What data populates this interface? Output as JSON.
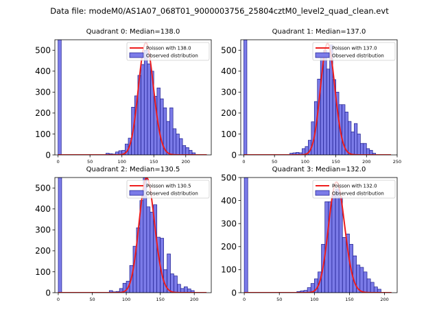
{
  "figure": {
    "suptitle": "Data file: modeM0/AS1A07_068T01_9000003756_25804cztM0_level2_quad_clean.evt"
  },
  "colors": {
    "bar_fill": "#7b7be8",
    "bar_edge": "#1a1a8c",
    "poisson_line": "#ee1c1c"
  },
  "chart_data": [
    {
      "type": "bar",
      "title": "Quadrant 0: Median=138.0",
      "xlim": [
        -5,
        240
      ],
      "ylim": [
        0,
        550
      ],
      "xticks": [
        0,
        50,
        100,
        150,
        200
      ],
      "yticks": [
        0,
        100,
        200,
        300,
        400,
        500
      ],
      "bin_width": 5,
      "bars": [
        {
          "x": 0,
          "y": 550
        },
        {
          "x": 75,
          "y": 8
        },
        {
          "x": 80,
          "y": 6
        },
        {
          "x": 85,
          "y": 4
        },
        {
          "x": 90,
          "y": 14
        },
        {
          "x": 95,
          "y": 20
        },
        {
          "x": 100,
          "y": 22
        },
        {
          "x": 105,
          "y": 52
        },
        {
          "x": 110,
          "y": 80
        },
        {
          "x": 115,
          "y": 228
        },
        {
          "x": 120,
          "y": 282
        },
        {
          "x": 125,
          "y": 380
        },
        {
          "x": 130,
          "y": 432
        },
        {
          "x": 135,
          "y": 500
        },
        {
          "x": 140,
          "y": 435
        },
        {
          "x": 145,
          "y": 400
        },
        {
          "x": 150,
          "y": 280
        },
        {
          "x": 155,
          "y": 320
        },
        {
          "x": 160,
          "y": 268
        },
        {
          "x": 165,
          "y": 225
        },
        {
          "x": 170,
          "y": 160
        },
        {
          "x": 175,
          "y": 225
        },
        {
          "x": 180,
          "y": 125
        },
        {
          "x": 185,
          "y": 100
        },
        {
          "x": 190,
          "y": 78
        },
        {
          "x": 195,
          "y": 45
        },
        {
          "x": 200,
          "y": 35
        },
        {
          "x": 205,
          "y": 22
        },
        {
          "x": 210,
          "y": 10
        }
      ],
      "poisson": {
        "mean": 138.0,
        "scale": 535,
        "range": [
          0,
          233
        ]
      },
      "legend": [
        "Poisson with 138.0",
        "Observed distribution"
      ]
    },
    {
      "type": "bar",
      "title": "Quadrant 1: Median=137.0",
      "xlim": [
        -5,
        250
      ],
      "ylim": [
        0,
        550
      ],
      "xticks": [
        0,
        50,
        100,
        150,
        200,
        250
      ],
      "yticks": [
        0,
        100,
        200,
        300,
        400,
        500
      ],
      "bin_width": 5,
      "bars": [
        {
          "x": 0,
          "y": 550
        },
        {
          "x": 75,
          "y": 8
        },
        {
          "x": 80,
          "y": 10
        },
        {
          "x": 85,
          "y": 12
        },
        {
          "x": 90,
          "y": 10
        },
        {
          "x": 95,
          "y": 30
        },
        {
          "x": 100,
          "y": 40
        },
        {
          "x": 105,
          "y": 70
        },
        {
          "x": 110,
          "y": 158
        },
        {
          "x": 115,
          "y": 255
        },
        {
          "x": 120,
          "y": 362
        },
        {
          "x": 125,
          "y": 482
        },
        {
          "x": 130,
          "y": 500
        },
        {
          "x": 135,
          "y": 410
        },
        {
          "x": 140,
          "y": 525
        },
        {
          "x": 145,
          "y": 360
        },
        {
          "x": 150,
          "y": 300
        },
        {
          "x": 155,
          "y": 240
        },
        {
          "x": 160,
          "y": 240
        },
        {
          "x": 165,
          "y": 205
        },
        {
          "x": 170,
          "y": 160
        },
        {
          "x": 175,
          "y": 110
        },
        {
          "x": 180,
          "y": 150
        },
        {
          "x": 185,
          "y": 100
        },
        {
          "x": 190,
          "y": 55
        },
        {
          "x": 195,
          "y": 55
        },
        {
          "x": 200,
          "y": 30
        },
        {
          "x": 205,
          "y": 22
        },
        {
          "x": 210,
          "y": 8
        }
      ],
      "poisson": {
        "mean": 137.0,
        "scale": 532,
        "range": [
          0,
          240
        ]
      },
      "legend": [
        "Poisson with 137.0",
        "Observed distribution"
      ]
    },
    {
      "type": "bar",
      "title": "Quadrant 2: Median=130.5",
      "xlim": [
        -5,
        225
      ],
      "ylim": [
        0,
        550
      ],
      "xticks": [
        0,
        50,
        100,
        150,
        200
      ],
      "yticks": [
        0,
        100,
        200,
        300,
        400,
        500
      ],
      "bin_width": 5,
      "bars": [
        {
          "x": 0,
          "y": 550
        },
        {
          "x": 75,
          "y": 10
        },
        {
          "x": 80,
          "y": 4
        },
        {
          "x": 85,
          "y": 6
        },
        {
          "x": 90,
          "y": 20
        },
        {
          "x": 95,
          "y": 45
        },
        {
          "x": 100,
          "y": 55
        },
        {
          "x": 105,
          "y": 130
        },
        {
          "x": 110,
          "y": 222
        },
        {
          "x": 115,
          "y": 310
        },
        {
          "x": 120,
          "y": 440
        },
        {
          "x": 125,
          "y": 550
        },
        {
          "x": 130,
          "y": 410
        },
        {
          "x": 135,
          "y": 385
        },
        {
          "x": 140,
          "y": 420
        },
        {
          "x": 145,
          "y": 265
        },
        {
          "x": 150,
          "y": 260
        },
        {
          "x": 155,
          "y": 110
        },
        {
          "x": 160,
          "y": 185
        },
        {
          "x": 165,
          "y": 90
        },
        {
          "x": 170,
          "y": 80
        },
        {
          "x": 175,
          "y": 40
        },
        {
          "x": 180,
          "y": 20
        },
        {
          "x": 185,
          "y": 28
        },
        {
          "x": 190,
          "y": 18
        },
        {
          "x": 195,
          "y": 10
        }
      ],
      "poisson": {
        "mean": 130.5,
        "scale": 548,
        "range": [
          0,
          218
        ]
      },
      "legend": [
        "Poisson with 130.5",
        "Observed distribution"
      ]
    },
    {
      "type": "bar",
      "title": "Quadrant 3: Median=132.0",
      "xlim": [
        -5,
        218
      ],
      "ylim": [
        0,
        500
      ],
      "xticks": [
        0,
        50,
        100,
        150,
        200
      ],
      "yticks": [
        0,
        100,
        200,
        300,
        400,
        500
      ],
      "bin_width": 5,
      "bars": [
        {
          "x": 0,
          "y": 500
        },
        {
          "x": 75,
          "y": 5
        },
        {
          "x": 80,
          "y": 8
        },
        {
          "x": 85,
          "y": 10
        },
        {
          "x": 90,
          "y": 22
        },
        {
          "x": 95,
          "y": 40
        },
        {
          "x": 100,
          "y": 60
        },
        {
          "x": 105,
          "y": 90
        },
        {
          "x": 110,
          "y": 210
        },
        {
          "x": 115,
          "y": 395
        },
        {
          "x": 120,
          "y": 395
        },
        {
          "x": 125,
          "y": 425
        },
        {
          "x": 130,
          "y": 450
        },
        {
          "x": 135,
          "y": 415
        },
        {
          "x": 140,
          "y": 240
        },
        {
          "x": 145,
          "y": 255
        },
        {
          "x": 150,
          "y": 210
        },
        {
          "x": 155,
          "y": 160
        },
        {
          "x": 160,
          "y": 120
        },
        {
          "x": 165,
          "y": 110
        },
        {
          "x": 170,
          "y": 90
        },
        {
          "x": 175,
          "y": 60
        },
        {
          "x": 180,
          "y": 45
        },
        {
          "x": 185,
          "y": 25
        },
        {
          "x": 190,
          "y": 15
        }
      ],
      "poisson": {
        "mean": 132.0,
        "scale": 480,
        "range": [
          0,
          210
        ]
      },
      "legend": [
        "Poisson with 132.0",
        "Observed distribution"
      ]
    }
  ]
}
